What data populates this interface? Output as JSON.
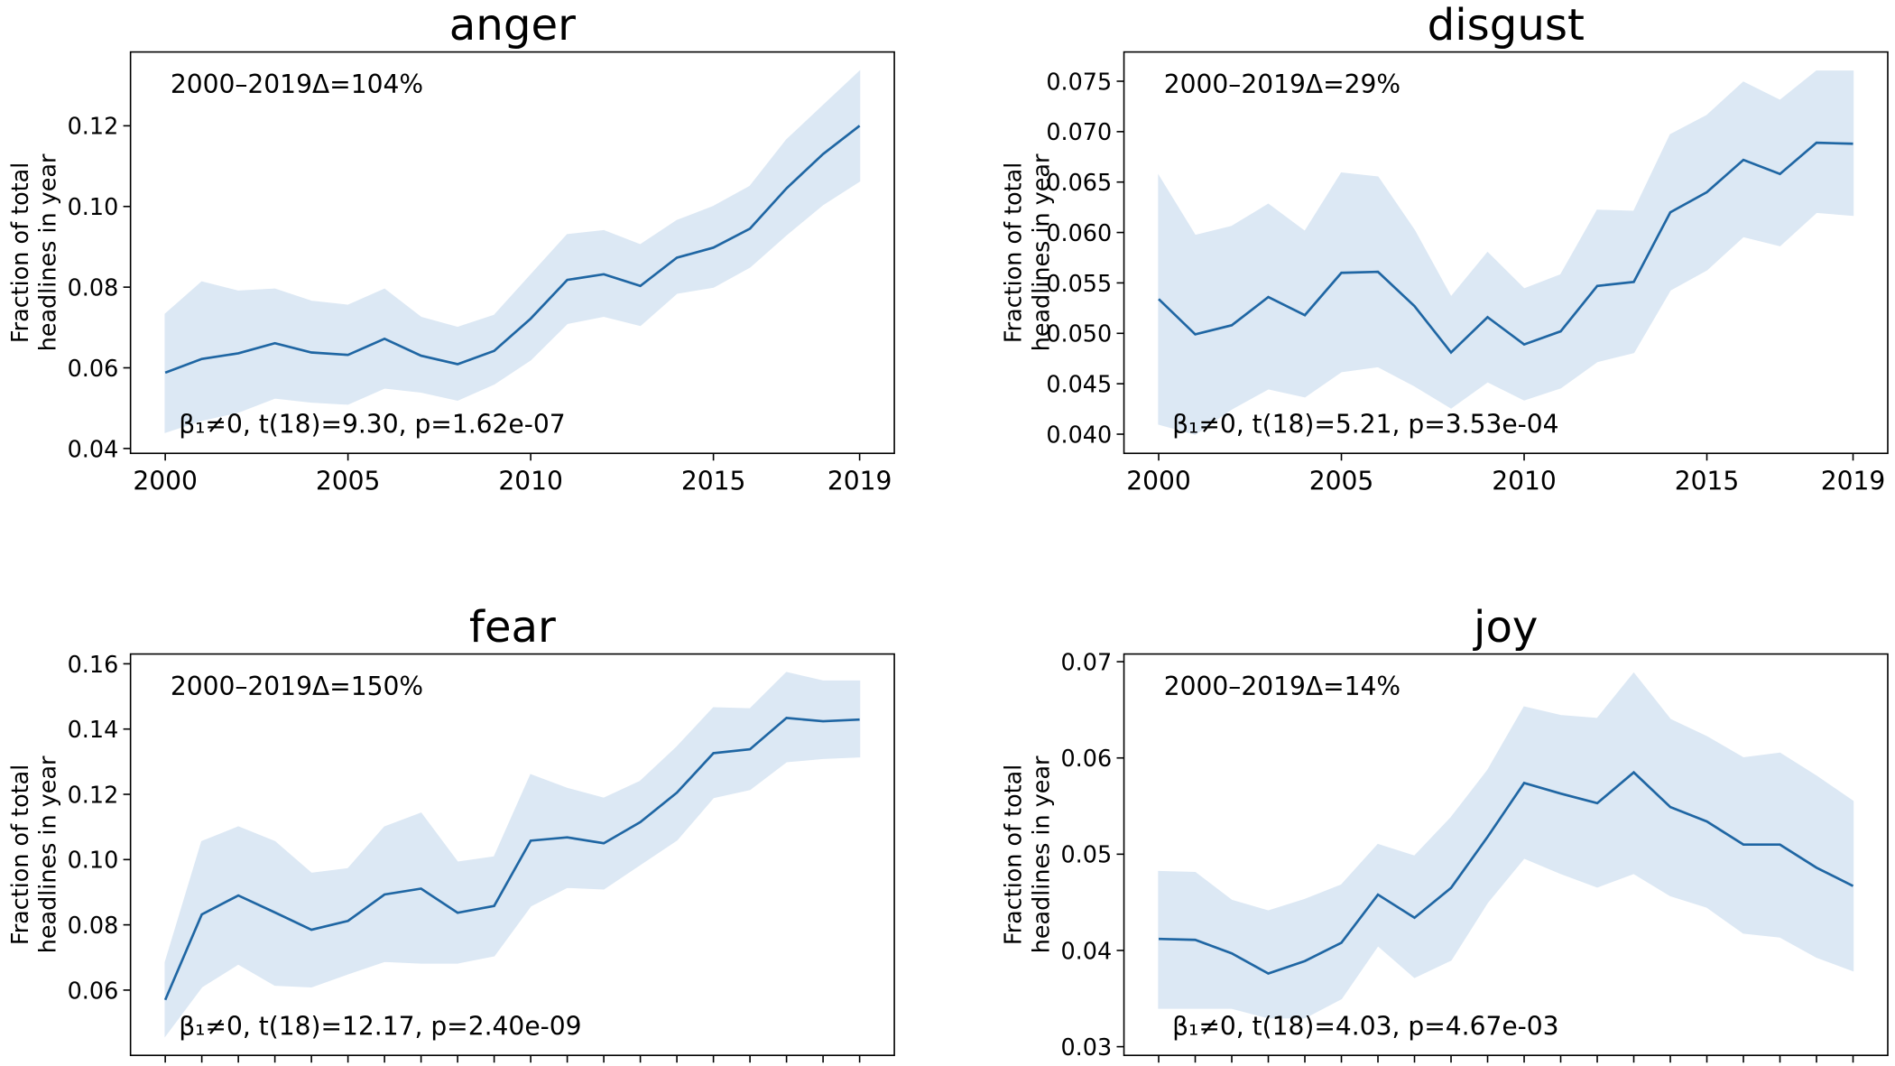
{
  "chart_data": [
    {
      "type": "line",
      "title": "anger",
      "ylabel": [
        "Fraction of total",
        "headlines in year"
      ],
      "annotations": [
        "2000–2019Δ=104%",
        "β₁≠0, t(18)=9.30, p=1.62e-07"
      ],
      "x": [
        2000,
        2001,
        2002,
        2003,
        2004,
        2005,
        2006,
        2007,
        2008,
        2009,
        2010,
        2011,
        2012,
        2013,
        2014,
        2015,
        2016,
        2017,
        2018,
        2019
      ],
      "series": [
        {
          "color": "#1f66a3",
          "band_color": "#dce8f4",
          "values": [
            0.0588,
            0.0622,
            0.0636,
            0.0661,
            0.0638,
            0.0632,
            0.0672,
            0.063,
            0.0609,
            0.0642,
            0.0722,
            0.0818,
            0.0832,
            0.0803,
            0.0873,
            0.0898,
            0.0945,
            0.1045,
            0.113,
            0.12
          ],
          "lower": [
            0.044,
            0.047,
            0.049,
            0.0525,
            0.0515,
            0.051,
            0.055,
            0.054,
            0.052,
            0.056,
            0.062,
            0.071,
            0.0728,
            0.0705,
            0.0785,
            0.08,
            0.085,
            0.093,
            0.1005,
            0.1063
          ],
          "upper": [
            0.0733,
            0.0813,
            0.079,
            0.0795,
            0.0765,
            0.0755,
            0.0795,
            0.0725,
            0.07,
            0.073,
            0.083,
            0.093,
            0.094,
            0.0905,
            0.0965,
            0.1,
            0.105,
            0.1165,
            0.125,
            0.1335
          ]
        }
      ],
      "xlim": [
        1999.05,
        2019.95
      ],
      "xticks": [
        2000,
        2005,
        2010,
        2015,
        2019
      ],
      "show_xtick_labels": true,
      "ylim": [
        0.0388,
        0.1383
      ],
      "yticks": [
        0.04,
        0.06,
        0.08,
        {
          "value": 0.1,
          "label": "0.10"
        },
        0.12
      ]
    },
    {
      "type": "line",
      "title": "disgust",
      "ylabel": [
        "Fraction of total",
        "headlines in year"
      ],
      "annotations": [
        "2000–2019Δ=29%",
        "β₁≠0, t(18)=5.21, p=3.53e-04"
      ],
      "x": [
        2000,
        2001,
        2002,
        2003,
        2004,
        2005,
        2006,
        2007,
        2008,
        2009,
        2010,
        2011,
        2012,
        2013,
        2014,
        2015,
        2016,
        2017,
        2018,
        2019
      ],
      "series": [
        {
          "color": "#1f66a3",
          "band_color": "#dce8f4",
          "values": [
            0.0534,
            0.0499,
            0.0508,
            0.0536,
            0.0518,
            0.056,
            0.0561,
            0.0527,
            0.0481,
            0.0516,
            0.0489,
            0.0502,
            0.0547,
            0.0551,
            0.062,
            0.064,
            0.0672,
            0.0658,
            0.0689,
            0.0688
          ],
          "lower": [
            0.041,
            0.04,
            0.0425,
            0.0445,
            0.0437,
            0.0462,
            0.0467,
            0.0448,
            0.0426,
            0.0452,
            0.0434,
            0.0446,
            0.0472,
            0.0481,
            0.0543,
            0.0563,
            0.0596,
            0.0587,
            0.062,
            0.0617
          ],
          "upper": [
            0.0656,
            0.0597,
            0.0606,
            0.0628,
            0.0601,
            0.0659,
            0.0655,
            0.0602,
            0.0536,
            0.058,
            0.0544,
            0.0558,
            0.0622,
            0.0621,
            0.0697,
            0.0716,
            0.0749,
            0.0731,
            0.076,
            0.076
          ]
        }
      ],
      "xlim": [
        1999.05,
        2019.95
      ],
      "xticks": [
        2000,
        2005,
        2010,
        2015,
        2019
      ],
      "show_xtick_labels": true,
      "ylim": [
        0.0381,
        0.0779
      ],
      "yticks": [
        {
          "value": 0.04,
          "label": "0.040"
        },
        {
          "value": 0.045,
          "label": "0.045"
        },
        {
          "value": 0.05,
          "label": "0.050"
        },
        {
          "value": 0.055,
          "label": "0.055"
        },
        {
          "value": 0.06,
          "label": "0.060"
        },
        {
          "value": 0.065,
          "label": "0.065"
        },
        {
          "value": 0.07,
          "label": "0.070"
        },
        {
          "value": 0.075,
          "label": "0.075"
        }
      ]
    },
    {
      "type": "line",
      "title": "fear",
      "ylabel": [
        "Fraction of total",
        "headlines in year"
      ],
      "annotations": [
        "2000–2019Δ=150%",
        "β₁≠0, t(18)=12.17, p=2.40e-09"
      ],
      "x": [
        2000,
        2001,
        2002,
        2003,
        2004,
        2005,
        2006,
        2007,
        2008,
        2009,
        2010,
        2011,
        2012,
        2013,
        2014,
        2015,
        2016,
        2017,
        2018,
        2019
      ],
      "series": [
        {
          "color": "#1f66a3",
          "band_color": "#dce8f4",
          "values": [
            0.057,
            0.0832,
            0.089,
            0.0838,
            0.0785,
            0.0812,
            0.0893,
            0.0911,
            0.0837,
            0.0858,
            0.1058,
            0.1068,
            0.105,
            0.1115,
            0.1205,
            0.1326,
            0.1338,
            0.1434,
            0.1424,
            0.1429
          ],
          "lower": [
            0.046,
            0.061,
            0.068,
            0.0615,
            0.061,
            0.065,
            0.0688,
            0.0683,
            0.0683,
            0.0705,
            0.0858,
            0.0915,
            0.091,
            0.0985,
            0.106,
            0.119,
            0.1215,
            0.13,
            0.131,
            0.1315
          ],
          "upper": [
            0.0685,
            0.1055,
            0.11,
            0.1055,
            0.0958,
            0.0972,
            0.11,
            0.1142,
            0.0992,
            0.1008,
            0.126,
            0.1218,
            0.1188,
            0.124,
            0.1345,
            0.1465,
            0.1462,
            0.1573,
            0.1547,
            0.1547
          ]
        }
      ],
      "xlim": [
        1999.05,
        2019.95
      ],
      "xticks": [
        2000,
        2001,
        2002,
        2003,
        2004,
        2005,
        2006,
        2007,
        2008,
        2009,
        2010,
        2011,
        2012,
        2013,
        2014,
        2015,
        2016,
        2017,
        2018,
        2019
      ],
      "show_xtick_labels": false,
      "ylim": [
        0.04,
        0.163
      ],
      "yticks": [
        0.06,
        0.08,
        {
          "value": 0.1,
          "label": "0.10"
        },
        0.12,
        0.14,
        0.16
      ]
    },
    {
      "type": "line",
      "title": "joy",
      "ylabel": [
        "Fraction of total",
        "headlines in year"
      ],
      "annotations": [
        "2000–2019Δ=14%",
        "β₁≠0, t(18)=4.03, p=4.67e-03"
      ],
      "x": [
        2000,
        2001,
        2002,
        2003,
        2004,
        2005,
        2006,
        2007,
        2008,
        2009,
        2010,
        2011,
        2012,
        2013,
        2014,
        2015,
        2016,
        2017,
        2018,
        2019
      ],
      "series": [
        {
          "color": "#1f66a3",
          "band_color": "#dce8f4",
          "values": [
            0.0412,
            0.0411,
            0.0397,
            0.0376,
            0.0389,
            0.0408,
            0.0458,
            0.0434,
            0.0465,
            0.0518,
            0.0574,
            0.0563,
            0.0553,
            0.0585,
            0.0549,
            0.0534,
            0.051,
            0.051,
            0.0486,
            0.0467
          ],
          "lower": [
            0.034,
            0.034,
            0.034,
            0.033,
            0.033,
            0.035,
            0.0405,
            0.0372,
            0.039,
            0.045,
            0.0496,
            0.048,
            0.0466,
            0.048,
            0.0457,
            0.0445,
            0.0418,
            0.0414,
            0.0393,
            0.0379
          ],
          "upper": [
            0.0482,
            0.0481,
            0.0452,
            0.0441,
            0.0453,
            0.0468,
            0.051,
            0.0498,
            0.0538,
            0.0587,
            0.0653,
            0.0644,
            0.0641,
            0.0688,
            0.064,
            0.0622,
            0.06,
            0.0605,
            0.0581,
            0.0555
          ]
        }
      ],
      "xlim": [
        1999.05,
        2019.95
      ],
      "xticks": [
        2000,
        2001,
        2002,
        2003,
        2004,
        2005,
        2006,
        2007,
        2008,
        2009,
        2010,
        2011,
        2012,
        2013,
        2014,
        2015,
        2016,
        2017,
        2018,
        2019
      ],
      "show_xtick_labels": false,
      "ylim": [
        0.0291,
        0.0708
      ],
      "yticks": [
        0.03,
        0.04,
        0.05,
        0.06,
        0.07
      ]
    }
  ]
}
